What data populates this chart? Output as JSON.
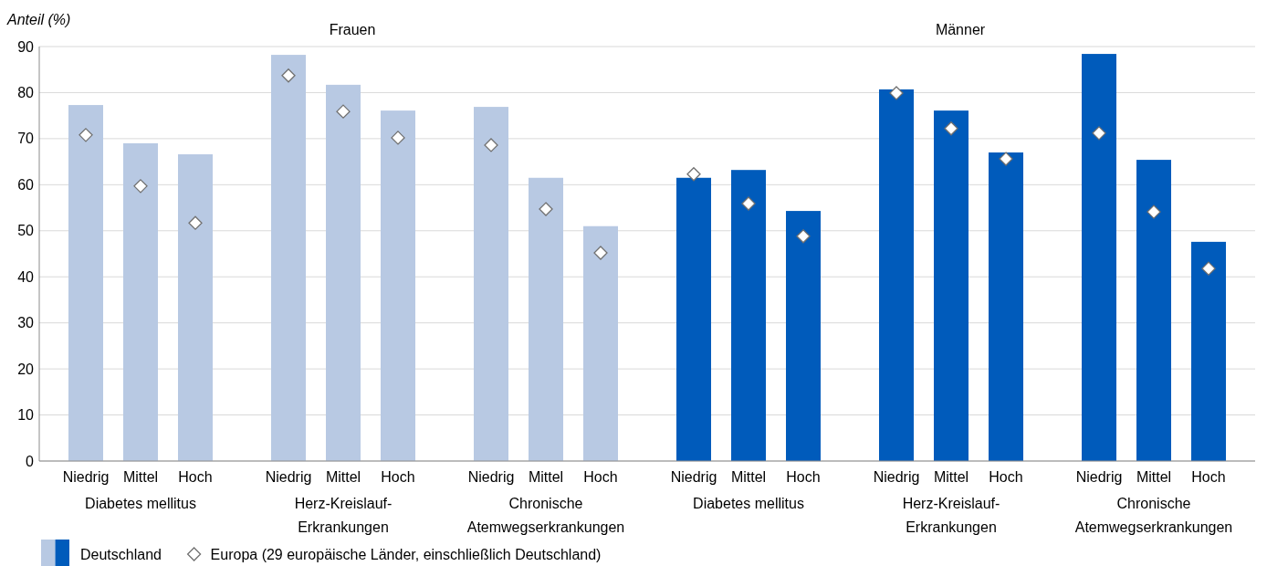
{
  "chart_data": [
    {
      "type": "bar",
      "title": "Frauen",
      "ylabel": "Anteil (%)",
      "categories": [
        "Niedrig",
        "Mittel",
        "Hoch",
        "Niedrig",
        "Mittel",
        "Hoch",
        "Niedrig",
        "Mittel",
        "Hoch"
      ],
      "annotations": [
        "Diabetes mellitus",
        "Herz-Kreislauf-Erkrankungen",
        "Chronische Atemwegserkrankungen"
      ],
      "series": [
        {
          "name": "Deutschland",
          "color": "#b8c9e3",
          "values": [
            77.3,
            69.0,
            66.6,
            88.2,
            81.7,
            76.1,
            76.9,
            61.5,
            51.0
          ]
        },
        {
          "name": "Europa (29 europäische Länder, einschließlich Deutschland)",
          "type": "scatter",
          "color": "#ffffff",
          "values": [
            70.8,
            59.7,
            51.7,
            83.7,
            75.9,
            70.2,
            68.6,
            54.7,
            45.2
          ]
        }
      ],
      "ylim": [
        0,
        90
      ],
      "yticks": [
        0,
        10,
        20,
        30,
        40,
        50,
        60,
        70,
        80,
        90
      ],
      "grid": "y",
      "marker": "diamond",
      "legend": "bottom"
    },
    {
      "type": "bar",
      "title": "Männer",
      "categories": [
        "Niedrig",
        "Mittel",
        "Hoch",
        "Niedrig",
        "Mittel",
        "Hoch",
        "Niedrig",
        "Mittel",
        "Hoch"
      ],
      "annotations": [
        "Diabetes mellitus",
        "Herz-Kreislauf-Erkrankungen",
        "Chronische Atemwegserkrankungen"
      ],
      "series": [
        {
          "color": "#005bbb",
          "values": [
            61.5,
            63.2,
            54.3,
            80.7,
            76.1,
            67.0,
            88.4,
            65.4,
            47.6
          ]
        },
        {
          "type": "scatter",
          "color": "#ffffff",
          "values": [
            62.3,
            55.9,
            48.8,
            79.9,
            72.2,
            65.6,
            71.2,
            54.1,
            41.8
          ]
        }
      ],
      "ylim": [
        0,
        90
      ],
      "yticks": [
        0,
        10,
        20,
        30,
        40,
        50,
        60,
        70,
        80,
        90
      ],
      "grid": "y",
      "marker": "diamond",
      "tick_labels": "x"
    }
  ]
}
